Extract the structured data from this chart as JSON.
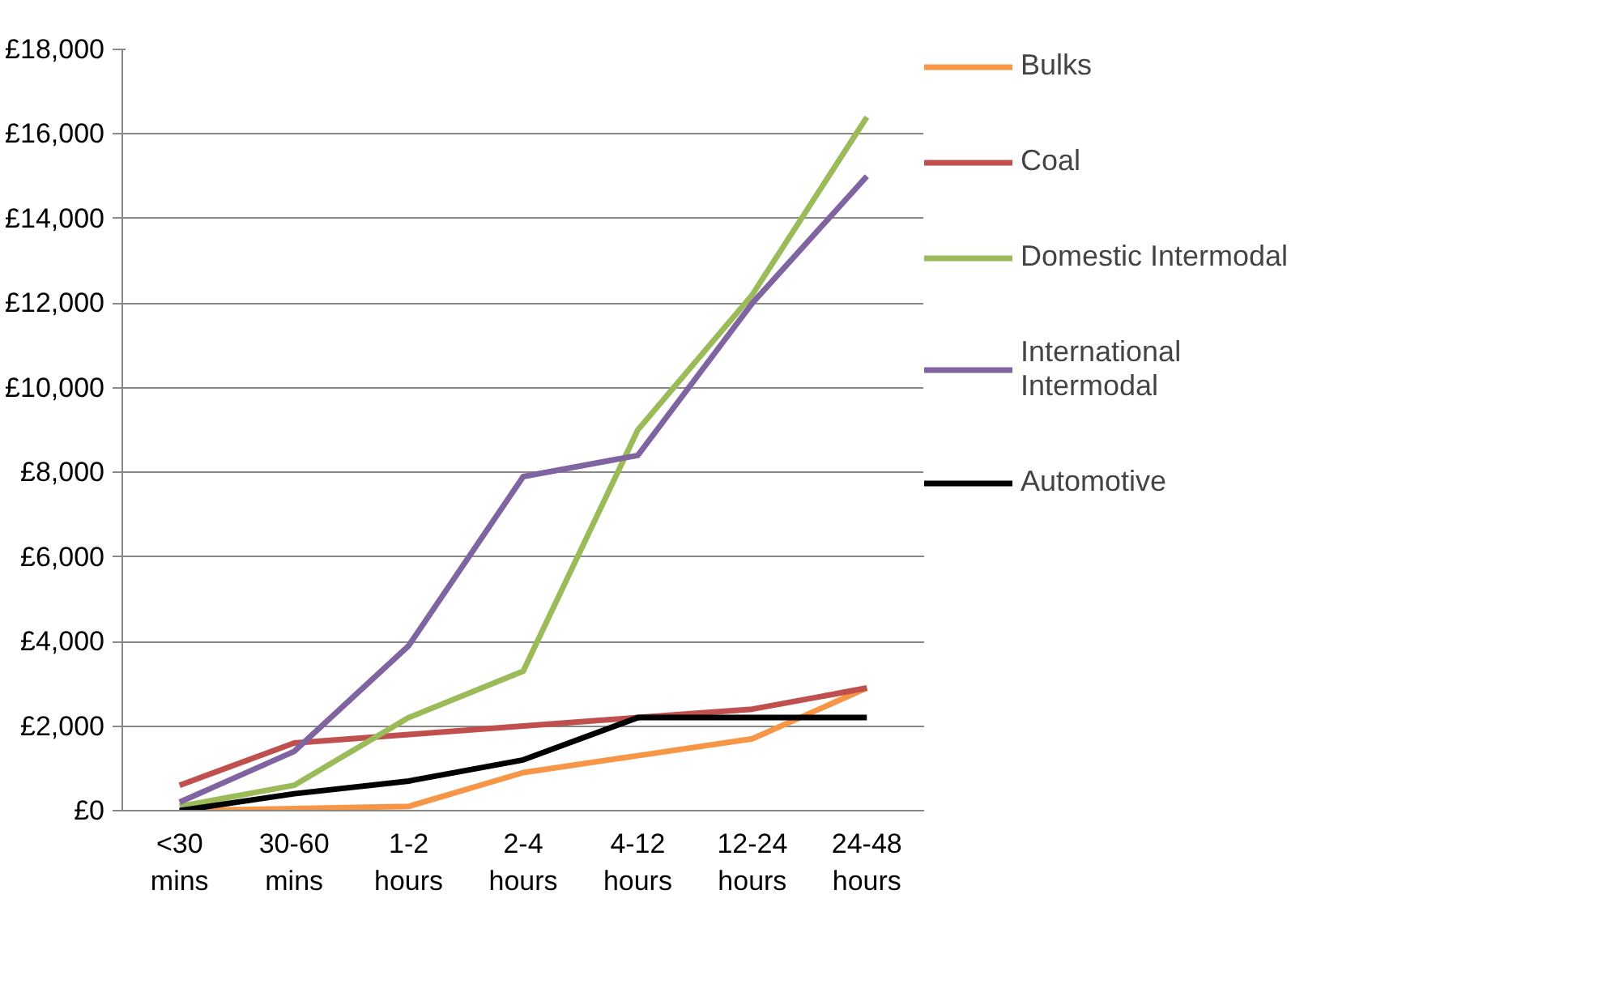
{
  "chart_data": {
    "type": "line",
    "categories": [
      "<30 mins",
      "30-60 mins",
      "1-2 hours",
      "2-4 hours",
      "4-12 hours",
      "12-24 hours",
      "24-48 hours"
    ],
    "series": [
      {
        "name": "Bulks",
        "color": "#f79646",
        "values": [
          0,
          50,
          100,
          900,
          1300,
          1700,
          2900
        ]
      },
      {
        "name": "Coal",
        "color": "#c0504d",
        "values": [
          600,
          1600,
          1800,
          2000,
          2200,
          2400,
          2900
        ]
      },
      {
        "name": "Domestic Intermodal",
        "color": "#9bbb59",
        "values": [
          100,
          600,
          2200,
          3300,
          9000,
          12200,
          16400
        ]
      },
      {
        "name": "International Intermodal",
        "color": "#8064a2",
        "values": [
          200,
          1400,
          3900,
          7900,
          8400,
          12000,
          15000
        ]
      },
      {
        "name": "Automotive",
        "color": "#000000",
        "values": [
          0,
          400,
          700,
          1200,
          2200,
          2200,
          2200
        ]
      }
    ],
    "ylim": [
      0,
      18000
    ],
    "yticks": [
      {
        "value": 0,
        "label": "£0"
      },
      {
        "value": 2000,
        "label": "£2,000"
      },
      {
        "value": 4000,
        "label": "£4,000"
      },
      {
        "value": 6000,
        "label": "£6,000"
      },
      {
        "value": 8000,
        "label": "£8,000"
      },
      {
        "value": 10000,
        "label": "£10,000"
      },
      {
        "value": 12000,
        "label": "£12,000"
      },
      {
        "value": 14000,
        "label": "£14,000"
      },
      {
        "value": 16000,
        "label": "£16,000"
      },
      {
        "value": 18000,
        "label": "£18,000"
      }
    ],
    "grid": "y",
    "legend": "right",
    "marker": "none",
    "line_style": "solid"
  }
}
